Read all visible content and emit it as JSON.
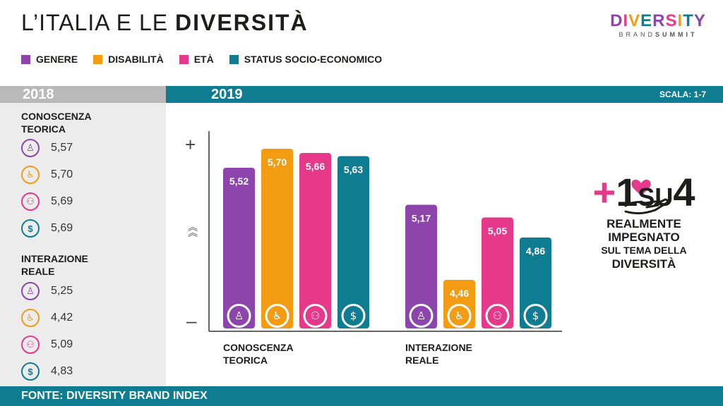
{
  "header": {
    "title_light": "L’ITALIA E LE",
    "title_bold": "DIVERSITÀ",
    "logo_word": "DIVERSITY",
    "logo_sub_light": "BRAND",
    "logo_sub_bold": "SUMMIT"
  },
  "legend": [
    {
      "label": "GENERE",
      "color": "#8e44ad"
    },
    {
      "label": "DISABILITÀ",
      "color": "#f39c12"
    },
    {
      "label": "ETÀ",
      "color": "#e6398b"
    },
    {
      "label": "STATUS SOCIO-ECONOMICO",
      "color": "#0e7c91"
    }
  ],
  "years": {
    "left": "2018",
    "right": "2019",
    "scale": "SCALA: 1-7"
  },
  "panel_2018": {
    "sections": [
      {
        "title_line1": "CONOSCENZA",
        "title_line2": "TEORICA",
        "values": [
          "5,57",
          "5,70",
          "5,69",
          "5,69"
        ]
      },
      {
        "title_line1": "INTERAZIONE",
        "title_line2": "REALE",
        "values": [
          "5,25",
          "4,42",
          "5,09",
          "4,83"
        ]
      }
    ]
  },
  "axis": {
    "plus": "+",
    "minus": "–"
  },
  "chart_data": {
    "type": "bar",
    "categories": [
      "CONOSCENZA TEORICA",
      "INTERAZIONE REALE"
    ],
    "category_lines": [
      [
        "CONOSCENZA",
        "TEORICA"
      ],
      [
        "INTERAZIONE",
        "REALE"
      ]
    ],
    "series": [
      {
        "name": "GENERE",
        "color": "#8e44ad",
        "icon": "person-icon",
        "values": [
          5.52,
          5.17
        ],
        "labels": [
          "5,52",
          "5,17"
        ]
      },
      {
        "name": "DISABILITÀ",
        "color": "#f39c12",
        "icon": "wheelchair-icon",
        "values": [
          5.7,
          4.46
        ],
        "labels": [
          "5,70",
          "4,46"
        ]
      },
      {
        "name": "ETÀ",
        "color": "#e6398b",
        "icon": "elderly-couple-icon",
        "values": [
          5.66,
          5.05
        ],
        "labels": [
          "5,66",
          "5,05"
        ]
      },
      {
        "name": "STATUS SOCIO-ECONOMICO",
        "color": "#0e7c91",
        "icon": "money-chart-icon",
        "values": [
          5.63,
          4.86
        ],
        "labels": [
          "5,63",
          "4,86"
        ]
      }
    ],
    "ylim": [
      4.0,
      5.8
    ],
    "scale_label": "SCALA: 1-7"
  },
  "callout": {
    "plus": "+",
    "one": "1",
    "su": "SU",
    "four": "4",
    "line1": "REALMENTE",
    "line2": "IMPEGNATO",
    "line3": "SUL TEMA DELLA",
    "line4": "DIVERSITÀ"
  },
  "footer": {
    "source": "FONTE: DIVERSITY BRAND INDEX"
  }
}
